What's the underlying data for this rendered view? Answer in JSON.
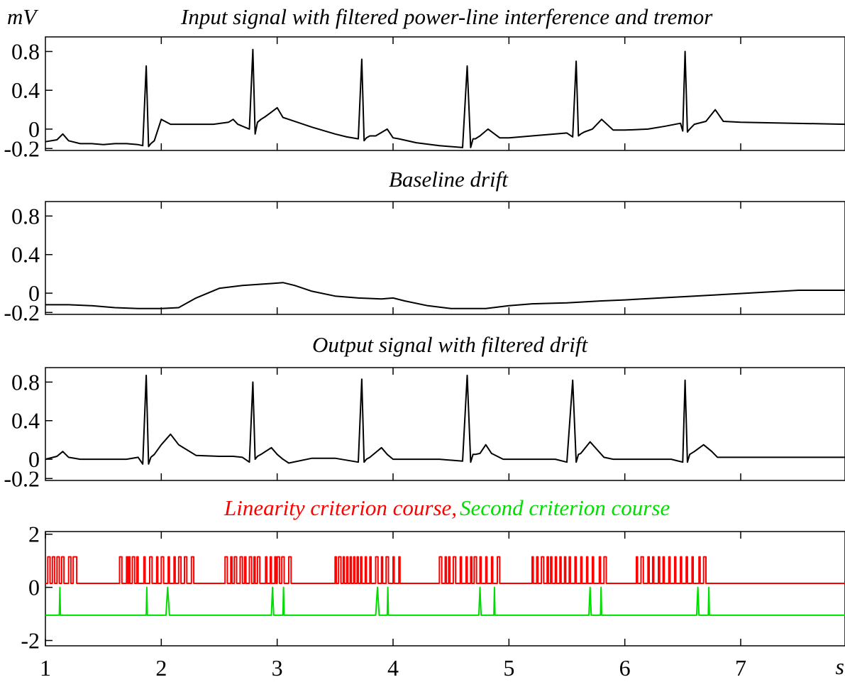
{
  "chart_data": [
    {
      "id": "input",
      "type": "line",
      "title": "Input signal with filtered power-line interference and tremor",
      "ylabel": "mV",
      "xlim": [
        1,
        7.9
      ],
      "ylim": [
        -0.22,
        0.95
      ],
      "yticks": [
        -0.2,
        0,
        0.4,
        0.8
      ],
      "ytick_labels": [
        "-0.2",
        "0",
        "0.4",
        "0.8"
      ],
      "xticks": [
        2,
        3,
        4,
        5,
        6,
        7
      ],
      "grid": false,
      "series": [
        {
          "color": "#000000",
          "x": [
            1.0,
            1.1,
            1.15,
            1.2,
            1.3,
            1.4,
            1.5,
            1.6,
            1.7,
            1.8,
            1.84,
            1.87,
            1.89,
            1.91,
            1.94,
            2.0,
            2.08,
            2.15,
            2.3,
            2.45,
            2.58,
            2.62,
            2.66,
            2.76,
            2.79,
            2.81,
            2.83,
            2.86,
            2.9,
            3.0,
            3.05,
            3.1,
            3.3,
            3.5,
            3.6,
            3.7,
            3.73,
            3.75,
            3.77,
            3.8,
            3.85,
            3.95,
            4.0,
            4.05,
            4.2,
            4.4,
            4.6,
            4.64,
            4.67,
            4.69,
            4.71,
            4.75,
            4.82,
            4.92,
            5.0,
            5.1,
            5.3,
            5.4,
            5.5,
            5.55,
            5.58,
            5.6,
            5.62,
            5.65,
            5.72,
            5.8,
            5.9,
            6.0,
            6.2,
            6.35,
            6.48,
            6.5,
            6.52,
            6.54,
            6.56,
            6.6,
            6.7,
            6.78,
            6.85,
            7.0,
            7.9
          ],
          "y": [
            -0.13,
            -0.11,
            -0.05,
            -0.12,
            -0.15,
            -0.15,
            -0.16,
            -0.15,
            -0.15,
            -0.16,
            -0.17,
            0.65,
            -0.18,
            -0.15,
            -0.12,
            0.1,
            0.05,
            0.05,
            0.05,
            0.05,
            0.07,
            0.1,
            0.05,
            0.0,
            0.82,
            -0.05,
            0.07,
            0.1,
            0.13,
            0.22,
            0.12,
            0.1,
            0.02,
            -0.05,
            -0.08,
            -0.1,
            0.72,
            -0.12,
            -0.09,
            -0.07,
            -0.07,
            0.0,
            -0.09,
            -0.1,
            -0.14,
            -0.17,
            -0.19,
            0.65,
            -0.19,
            -0.1,
            -0.1,
            -0.07,
            0.0,
            -0.09,
            -0.09,
            -0.08,
            -0.06,
            -0.05,
            -0.04,
            -0.08,
            0.7,
            -0.07,
            -0.05,
            -0.03,
            0.0,
            0.1,
            -0.01,
            -0.01,
            0.0,
            0.03,
            0.06,
            -0.02,
            0.8,
            -0.03,
            0.0,
            0.05,
            0.08,
            0.2,
            0.08,
            0.07,
            0.05
          ]
        }
      ]
    },
    {
      "id": "drift",
      "type": "line",
      "title": "Baseline drift",
      "xlim": [
        1,
        7.9
      ],
      "ylim": [
        -0.22,
        0.95
      ],
      "yticks": [
        -0.2,
        0,
        0.4,
        0.8
      ],
      "ytick_labels": [
        "-0.2",
        "0",
        "0.4",
        "0.8"
      ],
      "xticks": [
        2,
        3,
        4,
        5,
        6,
        7
      ],
      "grid": false,
      "series": [
        {
          "color": "#000000",
          "x": [
            1.0,
            1.2,
            1.4,
            1.6,
            1.8,
            2.0,
            2.15,
            2.3,
            2.5,
            2.7,
            2.95,
            3.05,
            3.15,
            3.3,
            3.5,
            3.7,
            3.9,
            4.0,
            4.1,
            4.3,
            4.5,
            4.6,
            4.8,
            5.0,
            5.2,
            5.5,
            5.8,
            6.0,
            6.3,
            6.6,
            6.9,
            7.2,
            7.5,
            7.9
          ],
          "y": [
            -0.12,
            -0.12,
            -0.13,
            -0.15,
            -0.16,
            -0.16,
            -0.15,
            -0.05,
            0.05,
            0.08,
            0.1,
            0.11,
            0.08,
            0.02,
            -0.03,
            -0.05,
            -0.06,
            -0.05,
            -0.08,
            -0.13,
            -0.16,
            -0.16,
            -0.16,
            -0.13,
            -0.11,
            -0.1,
            -0.08,
            -0.07,
            -0.05,
            -0.03,
            -0.01,
            0.01,
            0.03,
            0.03
          ]
        }
      ]
    },
    {
      "id": "output",
      "type": "line",
      "title": "Output signal with filtered drift",
      "xlim": [
        1,
        7.9
      ],
      "ylim": [
        -0.22,
        0.95
      ],
      "yticks": [
        -0.2,
        0,
        0.4,
        0.8
      ],
      "ytick_labels": [
        "-0.2",
        "0",
        "0.4",
        "0.8"
      ],
      "xticks": [
        2,
        3,
        4,
        5,
        6,
        7
      ],
      "grid": false,
      "series": [
        {
          "color": "#000000",
          "x": [
            1.0,
            1.1,
            1.15,
            1.2,
            1.3,
            1.5,
            1.7,
            1.8,
            1.84,
            1.87,
            1.89,
            1.91,
            1.94,
            2.0,
            2.08,
            2.15,
            2.3,
            2.5,
            2.62,
            2.7,
            2.76,
            2.79,
            2.81,
            2.83,
            2.86,
            2.95,
            3.0,
            3.05,
            3.1,
            3.3,
            3.5,
            3.7,
            3.73,
            3.75,
            3.77,
            3.8,
            3.9,
            3.95,
            4.0,
            4.2,
            4.4,
            4.6,
            4.64,
            4.67,
            4.69,
            4.71,
            4.75,
            4.8,
            4.85,
            4.95,
            5.2,
            5.4,
            5.5,
            5.55,
            5.58,
            5.6,
            5.62,
            5.7,
            5.76,
            5.82,
            5.9,
            6.2,
            6.4,
            6.5,
            6.52,
            6.54,
            6.56,
            6.6,
            6.68,
            6.75,
            6.8,
            6.9,
            7.0,
            7.9
          ],
          "y": [
            0.0,
            0.03,
            0.08,
            0.02,
            0.0,
            0.0,
            0.0,
            0.02,
            -0.05,
            0.87,
            -0.05,
            0.02,
            0.05,
            0.15,
            0.26,
            0.15,
            0.04,
            0.03,
            0.03,
            0.02,
            -0.03,
            0.8,
            0.0,
            0.03,
            0.05,
            0.12,
            0.05,
            0.0,
            -0.04,
            0.01,
            0.01,
            -0.03,
            0.83,
            -0.03,
            0.0,
            0.02,
            0.12,
            0.05,
            0.0,
            0.0,
            0.0,
            -0.02,
            0.87,
            -0.03,
            0.05,
            0.05,
            0.06,
            0.15,
            0.06,
            0.0,
            0.0,
            0.0,
            -0.03,
            0.82,
            -0.03,
            0.05,
            0.06,
            0.18,
            0.1,
            0.02,
            0.0,
            0.0,
            0.0,
            -0.03,
            0.82,
            -0.03,
            0.05,
            0.08,
            0.15,
            0.08,
            0.02,
            0.02,
            0.02,
            0.02
          ]
        }
      ]
    },
    {
      "id": "criteria",
      "type": "line",
      "title_parts": [
        {
          "text": "Linearity criterion course,",
          "color": "#ff0000"
        },
        {
          "text": "Second criterion course",
          "color": "#00dd00"
        }
      ],
      "xlabel": "s",
      "xlim": [
        1,
        7.9
      ],
      "ylim": [
        -2.2,
        2.1
      ],
      "yticks": [
        -2,
        0,
        2
      ],
      "ytick_labels": [
        "-2",
        "0",
        "2"
      ],
      "xticks": [
        1,
        2,
        3,
        4,
        5,
        6,
        7
      ],
      "xtick_labels": [
        "1",
        "2",
        "3",
        "4",
        "5",
        "6",
        "7"
      ],
      "grid": false,
      "series": [
        {
          "color": "#ff0000",
          "kind": "binary",
          "low": 0.15,
          "high": 1.15,
          "high_intervals": [
            [
              1.02,
              1.04
            ],
            [
              1.06,
              1.08
            ],
            [
              1.1,
              1.12
            ],
            [
              1.14,
              1.16
            ],
            [
              1.2,
              1.22
            ],
            [
              1.24,
              1.27
            ],
            [
              1.64,
              1.66
            ],
            [
              1.7,
              1.71
            ],
            [
              1.72,
              1.73
            ],
            [
              1.75,
              1.77
            ],
            [
              1.79,
              1.8
            ],
            [
              1.85,
              1.86
            ],
            [
              1.9,
              1.92
            ],
            [
              1.96,
              1.97
            ],
            [
              2.0,
              2.02
            ],
            [
              2.06,
              2.07
            ],
            [
              2.11,
              2.12
            ],
            [
              2.15,
              2.17
            ],
            [
              2.2,
              2.22
            ],
            [
              2.26,
              2.28
            ],
            [
              2.55,
              2.57
            ],
            [
              2.6,
              2.61
            ],
            [
              2.63,
              2.65
            ],
            [
              2.68,
              2.7
            ],
            [
              2.72,
              2.73
            ],
            [
              2.76,
              2.78
            ],
            [
              2.8,
              2.81
            ],
            [
              2.83,
              2.85
            ],
            [
              2.9,
              2.91
            ],
            [
              2.94,
              2.95
            ],
            [
              2.98,
              2.99
            ],
            [
              3.0,
              3.02
            ],
            [
              3.04,
              3.06
            ],
            [
              3.1,
              3.12
            ],
            [
              3.5,
              3.51
            ],
            [
              3.53,
              3.55
            ],
            [
              3.57,
              3.58
            ],
            [
              3.6,
              3.61
            ],
            [
              3.63,
              3.64
            ],
            [
              3.66,
              3.67
            ],
            [
              3.69,
              3.7
            ],
            [
              3.72,
              3.73
            ],
            [
              3.76,
              3.77
            ],
            [
              3.8,
              3.81
            ],
            [
              3.85,
              3.87
            ],
            [
              3.9,
              3.91
            ],
            [
              3.94,
              3.96
            ],
            [
              4.0,
              4.01
            ],
            [
              4.05,
              4.06
            ],
            [
              4.4,
              4.42
            ],
            [
              4.45,
              4.46
            ],
            [
              4.48,
              4.49
            ],
            [
              4.52,
              4.54
            ],
            [
              4.58,
              4.59
            ],
            [
              4.63,
              4.64
            ],
            [
              4.67,
              4.68
            ],
            [
              4.7,
              4.72
            ],
            [
              4.75,
              4.76
            ],
            [
              4.8,
              4.81
            ],
            [
              4.85,
              4.86
            ],
            [
              4.9,
              4.92
            ],
            [
              5.2,
              5.21
            ],
            [
              5.24,
              5.25
            ],
            [
              5.28,
              5.3
            ],
            [
              5.33,
              5.34
            ],
            [
              5.36,
              5.37
            ],
            [
              5.4,
              5.41
            ],
            [
              5.44,
              5.45
            ],
            [
              5.48,
              5.49
            ],
            [
              5.52,
              5.53
            ],
            [
              5.57,
              5.58
            ],
            [
              5.62,
              5.63
            ],
            [
              5.67,
              5.68
            ],
            [
              5.72,
              5.73
            ],
            [
              5.78,
              5.79
            ],
            [
              5.82,
              5.84
            ],
            [
              6.1,
              6.11
            ],
            [
              6.14,
              6.16
            ],
            [
              6.2,
              6.21
            ],
            [
              6.24,
              6.25
            ],
            [
              6.29,
              6.3
            ],
            [
              6.33,
              6.34
            ],
            [
              6.38,
              6.39
            ],
            [
              6.43,
              6.44
            ],
            [
              6.48,
              6.49
            ],
            [
              6.53,
              6.54
            ],
            [
              6.58,
              6.59
            ],
            [
              6.64,
              6.65
            ],
            [
              6.68,
              6.7
            ]
          ],
          "x_end": 7.9
        },
        {
          "color": "#00dd00",
          "kind": "impulse",
          "base": -1.05,
          "peak": 0.0,
          "spikes": [
            [
              1.12,
              1.13,
              1.13
            ],
            [
              1.87,
              1.88,
              1.88
            ],
            [
              2.04,
              2.06,
              2.07
            ],
            [
              2.95,
              2.97
            ],
            [
              3.05,
              3.06
            ],
            [
              3.85,
              3.86,
              3.88
            ],
            [
              3.95,
              3.96
            ],
            [
              4.74,
              4.76
            ],
            [
              4.87,
              4.88
            ],
            [
              5.69,
              5.71
            ],
            [
              5.79,
              5.8
            ],
            [
              6.62,
              6.64
            ],
            [
              6.72,
              6.73
            ]
          ]
        }
      ]
    }
  ]
}
